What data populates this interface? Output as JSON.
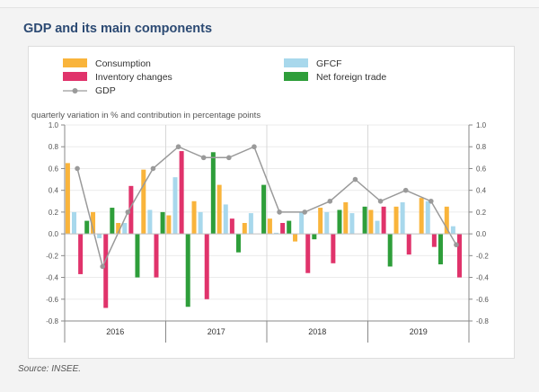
{
  "title": "GDP and its main components",
  "source": "Source: INSEE.",
  "colors": {
    "consumption": "#f9b43b",
    "gfcf": "#a8d8ec",
    "inventory": "#e0336b",
    "trade": "#2e9e3a",
    "gdp": "#9a9a9a"
  },
  "chart_data": {
    "type": "bar",
    "title": "GDP and its main components",
    "ylabel": "quarterly variation in % and contribution in percentage points",
    "ylim": [
      -0.8,
      1.0
    ],
    "yticks": [
      -0.8,
      -0.6,
      -0.4,
      -0.2,
      0.0,
      0.2,
      0.4,
      0.6,
      0.8,
      1.0
    ],
    "ytick_labels": [
      "-0.8",
      "-0.6",
      "-0.4",
      "-0.2",
      "0.0",
      "0.2",
      "0.4",
      "0.6",
      "0.8",
      "1.0"
    ],
    "years": [
      "2016",
      "2017",
      "2018",
      "2019"
    ],
    "quarters": [
      "2016 Q1",
      "2016 Q2",
      "2016 Q3",
      "2016 Q4",
      "2017 Q1",
      "2017 Q2",
      "2017 Q3",
      "2017 Q4",
      "2018 Q1",
      "2018 Q2",
      "2018 Q3",
      "2018 Q4",
      "2019 Q1",
      "2019 Q2",
      "2019 Q3",
      "2019 Q4"
    ],
    "legend": [
      "Consumption",
      "GFCF",
      "Inventory changes",
      "Net foreign trade",
      "GDP"
    ],
    "series": [
      {
        "name": "Consumption",
        "key": "consumption",
        "values": [
          0.65,
          0.2,
          0.1,
          0.59,
          0.17,
          0.3,
          0.45,
          0.1,
          0.14,
          -0.07,
          0.24,
          0.29,
          0.22,
          0.25,
          0.33,
          0.25
        ]
      },
      {
        "name": "GFCF",
        "key": "gfcf",
        "values": [
          0.2,
          -0.04,
          0.1,
          0.22,
          0.52,
          0.2,
          0.27,
          0.19,
          0.01,
          0.2,
          0.2,
          0.19,
          0.12,
          0.29,
          0.3,
          0.07
        ]
      },
      {
        "name": "Inventory changes",
        "key": "inventory",
        "values": [
          -0.37,
          -0.68,
          0.44,
          -0.4,
          0.76,
          -0.6,
          0.14,
          0.0,
          0.1,
          -0.36,
          -0.27,
          0.0,
          0.25,
          -0.19,
          -0.12,
          -0.4
        ]
      },
      {
        "name": "Net foreign trade",
        "key": "trade",
        "values": [
          0.12,
          0.24,
          -0.4,
          0.2,
          -0.67,
          0.75,
          -0.17,
          0.45,
          0.12,
          -0.05,
          0.22,
          0.25,
          -0.3,
          0.0,
          -0.28,
          0.0
        ]
      },
      {
        "name": "GDP",
        "key": "gdp",
        "type": "line",
        "values": [
          0.6,
          -0.3,
          0.2,
          0.6,
          0.8,
          0.7,
          0.7,
          0.8,
          0.2,
          0.2,
          0.3,
          0.5,
          0.3,
          0.4,
          0.3,
          -0.1
        ]
      }
    ]
  }
}
